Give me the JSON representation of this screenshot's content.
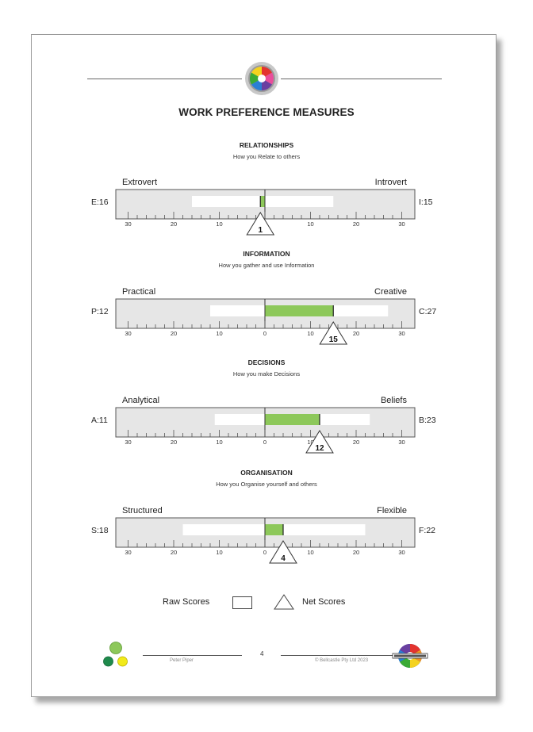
{
  "title": "WORK PREFERENCE MEASURES",
  "sections": [
    {
      "title": "RELATIONSHIPS",
      "subtitle": "How you Relate to others",
      "left_pole": "Extrovert",
      "right_pole": "Introvert",
      "left_score": "E:16",
      "right_score": "I:15",
      "left_raw": 16,
      "right_raw": 15,
      "net": 1,
      "net_label": "1",
      "net_side": "left"
    },
    {
      "title": "INFORMATION",
      "subtitle": "How you gather and use Information",
      "left_pole": "Practical",
      "right_pole": "Creative",
      "left_score": "P:12",
      "right_score": "C:27",
      "left_raw": 12,
      "right_raw": 27,
      "net": 15,
      "net_label": "15",
      "net_side": "right"
    },
    {
      "title": "DECISIONS",
      "subtitle": "How you make Decisions",
      "left_pole": "Analytical",
      "right_pole": "Beliefs",
      "left_score": "A:11",
      "right_score": "B:23",
      "left_raw": 11,
      "right_raw": 23,
      "net": 12,
      "net_label": "12",
      "net_side": "right"
    },
    {
      "title": "ORGANISATION",
      "subtitle": "How you Organise yourself and others",
      "left_pole": "Structured",
      "right_pole": "Flexible",
      "left_score": "S:18",
      "right_score": "F:22",
      "left_raw": 18,
      "right_raw": 22,
      "net": 4,
      "net_label": "4",
      "net_side": "right"
    }
  ],
  "scale_labels": [
    "30",
    "20",
    "10",
    "0",
    "10",
    "20",
    "30"
  ],
  "legend": {
    "raw": "Raw Scores",
    "net": "Net Scores"
  },
  "footer": {
    "name": "Peter Piper",
    "page": "4",
    "copyright": "© Bellcastle Pty Ltd  2023"
  },
  "colors": {
    "net_bar": "#8dc85a",
    "scale_bg": "#e6e6e6",
    "raw_bar": "#ffffff"
  }
}
